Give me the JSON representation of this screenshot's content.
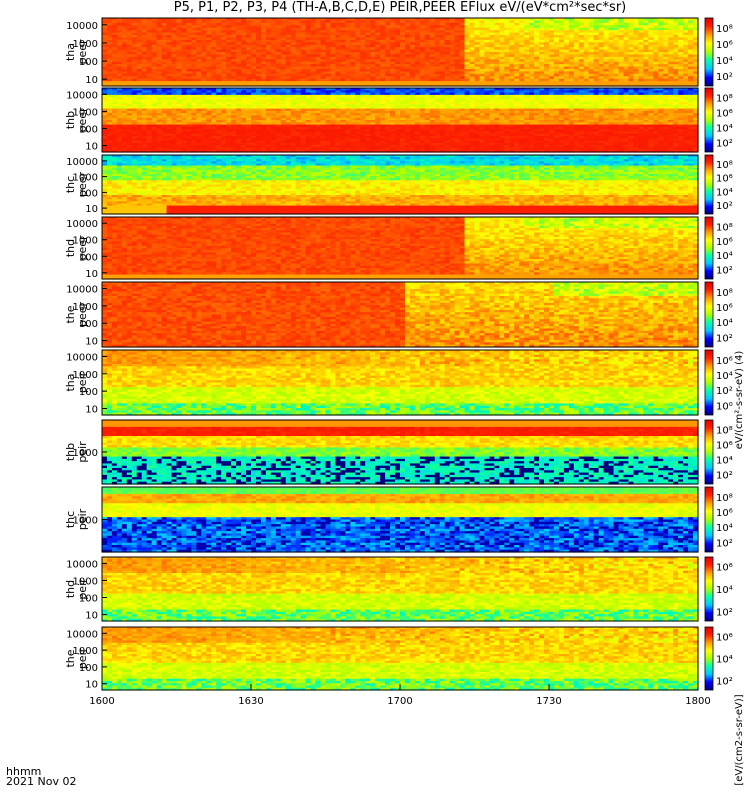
{
  "title": "P5, P1, P2, P3, P4 (TH-A,B,C,D,E) PEIR,PEER EFlux eV/(eV*cm²*sec*sr)",
  "footer": {
    "time_label": "hhmm",
    "date_label": "2021 Nov 02"
  },
  "colorbar_label_top": "eV/(cm²-s-sr-eV) (4)",
  "colorbar_label_bottom": "[eV/(cm2-s-sr-eV)]",
  "chart_data": {
    "type": "heatmap",
    "x_axis": {
      "ticks": [
        "1600",
        "1630",
        "1700",
        "1730",
        "1800"
      ],
      "range": [
        "16:00",
        "18:00"
      ],
      "label": "hhmm"
    },
    "colorscale": [
      "#000080",
      "#0000ff",
      "#00c8ff",
      "#00ffb0",
      "#aaff00",
      "#ffff00",
      "#ffa000",
      "#ff2000",
      "#e00000"
    ],
    "panels": [
      {
        "probe": "tha",
        "species": "peer",
        "ylabel1": "tha",
        "ylabel2": "peer",
        "yscale": "log",
        "yticks": [
          "10000",
          "1000",
          "100",
          "10"
        ],
        "cbar_ticks": [
          "10⁸",
          "10⁶",
          "10⁴",
          "10²"
        ],
        "pattern": "electron_hot"
      },
      {
        "probe": "thb",
        "species": "peer",
        "ylabel1": "thb",
        "ylabel2": "peer",
        "yscale": "log",
        "yticks": [
          "10000",
          "1000",
          "100",
          "10"
        ],
        "cbar_ticks": [
          "10⁸",
          "10⁶",
          "10⁴",
          "10²"
        ],
        "pattern": "electron_band"
      },
      {
        "probe": "thc",
        "species": "peer",
        "ylabel1": "thc",
        "ylabel2": "peer",
        "yscale": "log",
        "yticks": [
          "10000",
          "1000",
          "100",
          "10"
        ],
        "cbar_ticks": [
          "10⁸",
          "10⁶",
          "10⁴",
          "10²"
        ],
        "pattern": "electron_cold"
      },
      {
        "probe": "thd",
        "species": "peer",
        "ylabel1": "thd",
        "ylabel2": "peer",
        "yscale": "log",
        "yticks": [
          "10000",
          "1000",
          "100",
          "10"
        ],
        "cbar_ticks": [
          "10⁸",
          "10⁶",
          "10⁴",
          "10²"
        ],
        "pattern": "electron_hot"
      },
      {
        "probe": "the",
        "species": "peer",
        "ylabel1": "the",
        "ylabel2": "peer",
        "yscale": "log",
        "yticks": [
          "10000",
          "1000",
          "100",
          "10"
        ],
        "cbar_ticks": [
          "10⁸",
          "10⁶",
          "10⁴",
          "10²"
        ],
        "pattern": "electron_hot2"
      },
      {
        "probe": "tha",
        "species": "peir",
        "ylabel1": "tha",
        "ylabel2": "peir",
        "yscale": "log",
        "yticks": [
          "10000",
          "1000",
          "100",
          "10"
        ],
        "cbar_ticks": [
          "10⁶",
          "10⁴",
          "10²",
          "10⁰"
        ],
        "pattern": "ion"
      },
      {
        "probe": "thb",
        "species": "peir",
        "ylabel1": "thb",
        "ylabel2": "peir",
        "yscale": "log",
        "yticks": [
          "1000"
        ],
        "cbar_ticks": [
          "10⁸",
          "10⁶",
          "10⁴",
          "10²"
        ],
        "pattern": "ion_noise"
      },
      {
        "probe": "thc",
        "species": "peir",
        "ylabel1": "thc",
        "ylabel2": "peir",
        "yscale": "log",
        "yticks": [
          "1000"
        ],
        "cbar_ticks": [
          "10⁸",
          "10⁶",
          "10⁴",
          "10²"
        ],
        "pattern": "ion_noise_blue"
      },
      {
        "probe": "thd",
        "species": "peir",
        "ylabel1": "thd",
        "ylabel2": "peir",
        "yscale": "log",
        "yticks": [
          "10000",
          "1000",
          "100",
          "10"
        ],
        "cbar_ticks": [
          "10⁶",
          "10⁴",
          "10²"
        ],
        "pattern": "ion"
      },
      {
        "probe": "the",
        "species": "peir",
        "ylabel1": "the",
        "ylabel2": "peir",
        "yscale": "log",
        "yticks": [
          "10000",
          "1000",
          "100",
          "10"
        ],
        "cbar_ticks": [
          "10⁶",
          "10⁴",
          "10²"
        ],
        "pattern": "ion"
      }
    ]
  }
}
